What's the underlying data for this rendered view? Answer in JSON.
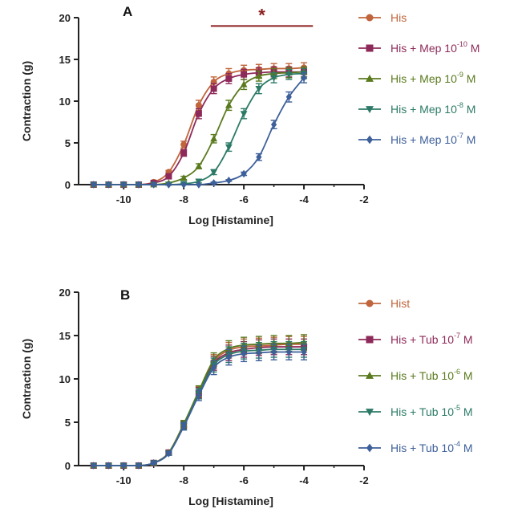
{
  "chart_data": [
    {
      "type": "line",
      "panel_label": "A",
      "xlabel": "Log [Histamine]",
      "ylabel": "Contraction (g)",
      "xlim": [
        -11.5,
        -2
      ],
      "ylim": [
        0,
        20
      ],
      "x_ticks": [
        -10,
        -8,
        -6,
        -4,
        -2
      ],
      "x_tick_labels": [
        "-10",
        "-8",
        "-6",
        "-4",
        "-2"
      ],
      "y_ticks": [
        0,
        5,
        10,
        15,
        20
      ],
      "y_tick_labels": [
        "0",
        "5",
        "10",
        "15",
        "20"
      ],
      "significance": {
        "label": "*",
        "x_start": -7.1,
        "x_end": -3.7,
        "y": 19.0
      },
      "x": [
        -11,
        -10.5,
        -10,
        -9.5,
        -9,
        -8.5,
        -8,
        -7.5,
        -7,
        -6.5,
        -6,
        -5.5,
        -5,
        -4.5,
        -4
      ],
      "series": [
        {
          "name": "His",
          "legend_base": "His",
          "legend_sup": "",
          "legend_suffix": "",
          "color": "#c0643b",
          "marker": "circle",
          "values": [
            0,
            0,
            0,
            0,
            0.3,
            1.5,
            4.8,
            9.5,
            12.3,
            13.3,
            13.7,
            13.8,
            13.9,
            13.9,
            14.0
          ],
          "errors": [
            0,
            0,
            0,
            0,
            0.1,
            0.2,
            0.4,
            0.6,
            0.6,
            0.6,
            0.6,
            0.6,
            0.6,
            0.6,
            0.6
          ]
        },
        {
          "name": "His + Mep 10-10 M",
          "legend_base": "His + Mep 10",
          "legend_sup": "-10",
          "legend_suffix": " M",
          "color": "#8e2a59",
          "marker": "square",
          "values": [
            0,
            0,
            0,
            0,
            0.2,
            1.0,
            3.8,
            8.5,
            11.5,
            12.7,
            13.2,
            13.4,
            13.5,
            13.5,
            13.5
          ],
          "errors": [
            0,
            0,
            0,
            0,
            0.1,
            0.2,
            0.4,
            0.6,
            0.6,
            0.6,
            0.6,
            0.6,
            0.6,
            0.6,
            0.6
          ]
        },
        {
          "name": "His + Mep 10-9 M",
          "legend_base": "His + Mep 10",
          "legend_sup": "-9",
          "legend_suffix": " M",
          "color": "#5a7a1e",
          "marker": "triangle-up",
          "values": [
            0,
            0,
            0,
            0,
            0,
            0.2,
            0.8,
            2.2,
            5.5,
            9.5,
            12.0,
            13.0,
            13.3,
            13.4,
            13.5
          ],
          "errors": [
            0,
            0,
            0,
            0,
            0,
            0.1,
            0.2,
            0.3,
            0.5,
            0.6,
            0.6,
            0.6,
            0.6,
            0.6,
            0.6
          ]
        },
        {
          "name": "His + Mep 10-8 M",
          "legend_base": "His + Mep 10",
          "legend_sup": "-8",
          "legend_suffix": " M",
          "color": "#2c7a66",
          "marker": "triangle-down",
          "values": [
            0,
            0,
            0,
            0,
            0,
            0,
            0.1,
            0.4,
            1.5,
            4.5,
            8.5,
            11.5,
            12.8,
            13.2,
            13.3
          ],
          "errors": [
            0,
            0,
            0,
            0,
            0,
            0,
            0.1,
            0.2,
            0.3,
            0.5,
            0.6,
            0.6,
            0.6,
            0.6,
            0.6
          ]
        },
        {
          "name": "His + Mep 10-7 M",
          "legend_base": "His + Mep 10",
          "legend_sup": "-7",
          "legend_suffix": " M",
          "color": "#3d5f9a",
          "marker": "diamond",
          "values": [
            0,
            0,
            0,
            0,
            0,
            0,
            0,
            0,
            0.2,
            0.5,
            1.3,
            3.3,
            7.2,
            10.5,
            12.8
          ],
          "errors": [
            0,
            0,
            0,
            0,
            0,
            0,
            0,
            0,
            0.1,
            0.1,
            0.2,
            0.4,
            0.5,
            0.6,
            0.6
          ]
        }
      ]
    },
    {
      "type": "line",
      "panel_label": "B",
      "xlabel": "Log [Histamine]",
      "ylabel": "Contraction (g)",
      "xlim": [
        -11.5,
        -2
      ],
      "ylim": [
        0,
        20
      ],
      "x_ticks": [
        -10,
        -8,
        -6,
        -4,
        -2
      ],
      "x_tick_labels": [
        "-10",
        "-8",
        "-6",
        "-4",
        "-2"
      ],
      "y_ticks": [
        0,
        5,
        10,
        15,
        20
      ],
      "y_tick_labels": [
        "0",
        "5",
        "10",
        "15",
        "20"
      ],
      "x": [
        -11,
        -10.5,
        -10,
        -9.5,
        -9,
        -8.5,
        -8,
        -7.5,
        -7,
        -6.5,
        -6,
        -5.5,
        -5,
        -4.5,
        -4
      ],
      "series": [
        {
          "name": "Hist",
          "legend_base": "Hist",
          "legend_sup": "",
          "legend_suffix": "",
          "color": "#c0643b",
          "marker": "circle",
          "values": [
            0,
            0,
            0,
            0,
            0.3,
            1.5,
            4.8,
            8.5,
            12.0,
            13.3,
            13.7,
            13.8,
            13.9,
            14.0,
            14.0
          ],
          "errors": [
            0,
            0,
            0,
            0,
            0.1,
            0.2,
            0.4,
            0.6,
            0.8,
            0.9,
            0.9,
            0.9,
            0.9,
            0.9,
            0.9
          ]
        },
        {
          "name": "His + Tub 10-7 M",
          "legend_base": "His + Tub 10",
          "legend_sup": "-7",
          "legend_suffix": " M",
          "color": "#8e2a59",
          "marker": "square",
          "values": [
            0,
            0,
            0,
            0,
            0.3,
            1.5,
            4.7,
            8.4,
            11.8,
            13.0,
            13.4,
            13.6,
            13.7,
            13.7,
            13.7
          ],
          "errors": [
            0,
            0,
            0,
            0,
            0.1,
            0.2,
            0.4,
            0.6,
            0.8,
            0.9,
            0.9,
            0.9,
            0.9,
            0.9,
            0.9
          ]
        },
        {
          "name": "His + Tub 10-6 M",
          "legend_base": "His + Tub 10",
          "legend_sup": "-6",
          "legend_suffix": " M",
          "color": "#5a7a1e",
          "marker": "triangle-up",
          "values": [
            0,
            0,
            0,
            0,
            0.3,
            1.5,
            4.8,
            8.6,
            12.2,
            13.5,
            13.9,
            14.0,
            14.1,
            14.1,
            14.2
          ],
          "errors": [
            0,
            0,
            0,
            0,
            0.1,
            0.2,
            0.4,
            0.6,
            0.8,
            0.9,
            0.9,
            0.9,
            0.9,
            0.9,
            0.9
          ]
        },
        {
          "name": "His + Tub 10-5 M",
          "legend_base": "His + Tub 10",
          "legend_sup": "-5",
          "legend_suffix": " M",
          "color": "#2c7a66",
          "marker": "triangle-down",
          "values": [
            0,
            0,
            0,
            0,
            0.3,
            1.4,
            4.6,
            8.3,
            11.6,
            12.8,
            13.2,
            13.3,
            13.4,
            13.4,
            13.4
          ],
          "errors": [
            0,
            0,
            0,
            0,
            0.1,
            0.2,
            0.4,
            0.6,
            0.8,
            0.9,
            0.9,
            0.9,
            0.9,
            0.9,
            0.9
          ]
        },
        {
          "name": "His + Tub 10-4 M",
          "legend_base": "His + Tub 10",
          "legend_sup": "-4",
          "legend_suffix": " M",
          "color": "#3d5f9a",
          "marker": "diamond",
          "values": [
            0,
            0,
            0,
            0,
            0.3,
            1.4,
            4.5,
            8.1,
            11.3,
            12.5,
            12.9,
            13.0,
            13.1,
            13.1,
            13.1
          ],
          "errors": [
            0,
            0,
            0,
            0,
            0.1,
            0.2,
            0.4,
            0.6,
            0.8,
            0.9,
            0.9,
            0.9,
            0.9,
            0.9,
            0.9
          ]
        }
      ]
    }
  ]
}
